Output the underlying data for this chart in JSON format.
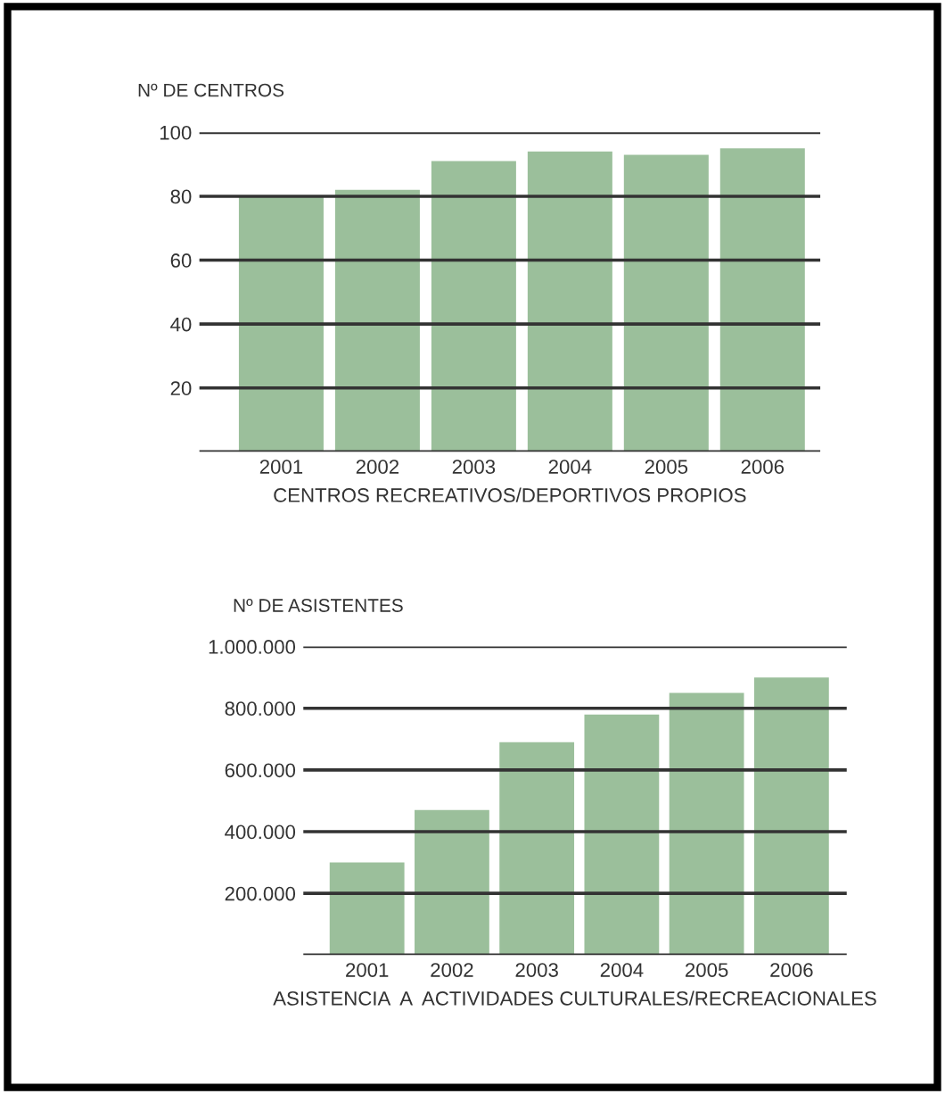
{
  "chart_data": [
    {
      "type": "bar",
      "ylabel": "Nº DE CENTROS",
      "xlabel": "CENTROS RECREATIVOS/DEPORTIVOS PROPIOS",
      "categories": [
        "2001",
        "2002",
        "2003",
        "2004",
        "2005",
        "2006"
      ],
      "values": [
        80,
        82,
        91,
        94,
        93,
        95
      ],
      "color": "#9bbf9b",
      "ylim": [
        0,
        100
      ],
      "yticks": [
        {
          "value": 0,
          "label": null
        },
        20,
        40,
        60,
        80,
        100
      ],
      "grid": "y",
      "legend": false
    },
    {
      "type": "bar",
      "ylabel": "Nº DE ASISTENTES",
      "xlabel": "ASISTENCIA  A  ACTIVIDADES CULTURALES/RECREACIONALES",
      "categories": [
        "2001",
        "2002",
        "2003",
        "2004",
        "2005",
        "2006"
      ],
      "values": [
        300000,
        470000,
        690000,
        780000,
        850000,
        900000
      ],
      "color": "#9bbf9b",
      "ylim": [
        0,
        1000000
      ],
      "yticks": [
        {
          "value": 0,
          "label": null
        },
        {
          "value": 200000,
          "label": "200.000"
        },
        {
          "value": 400000,
          "label": "400.000"
        },
        {
          "value": 600000,
          "label": "600.000"
        },
        {
          "value": 800000,
          "label": "800.000"
        },
        {
          "value": 1000000,
          "label": "1.000.000"
        }
      ],
      "grid": "y",
      "legend": false
    }
  ]
}
